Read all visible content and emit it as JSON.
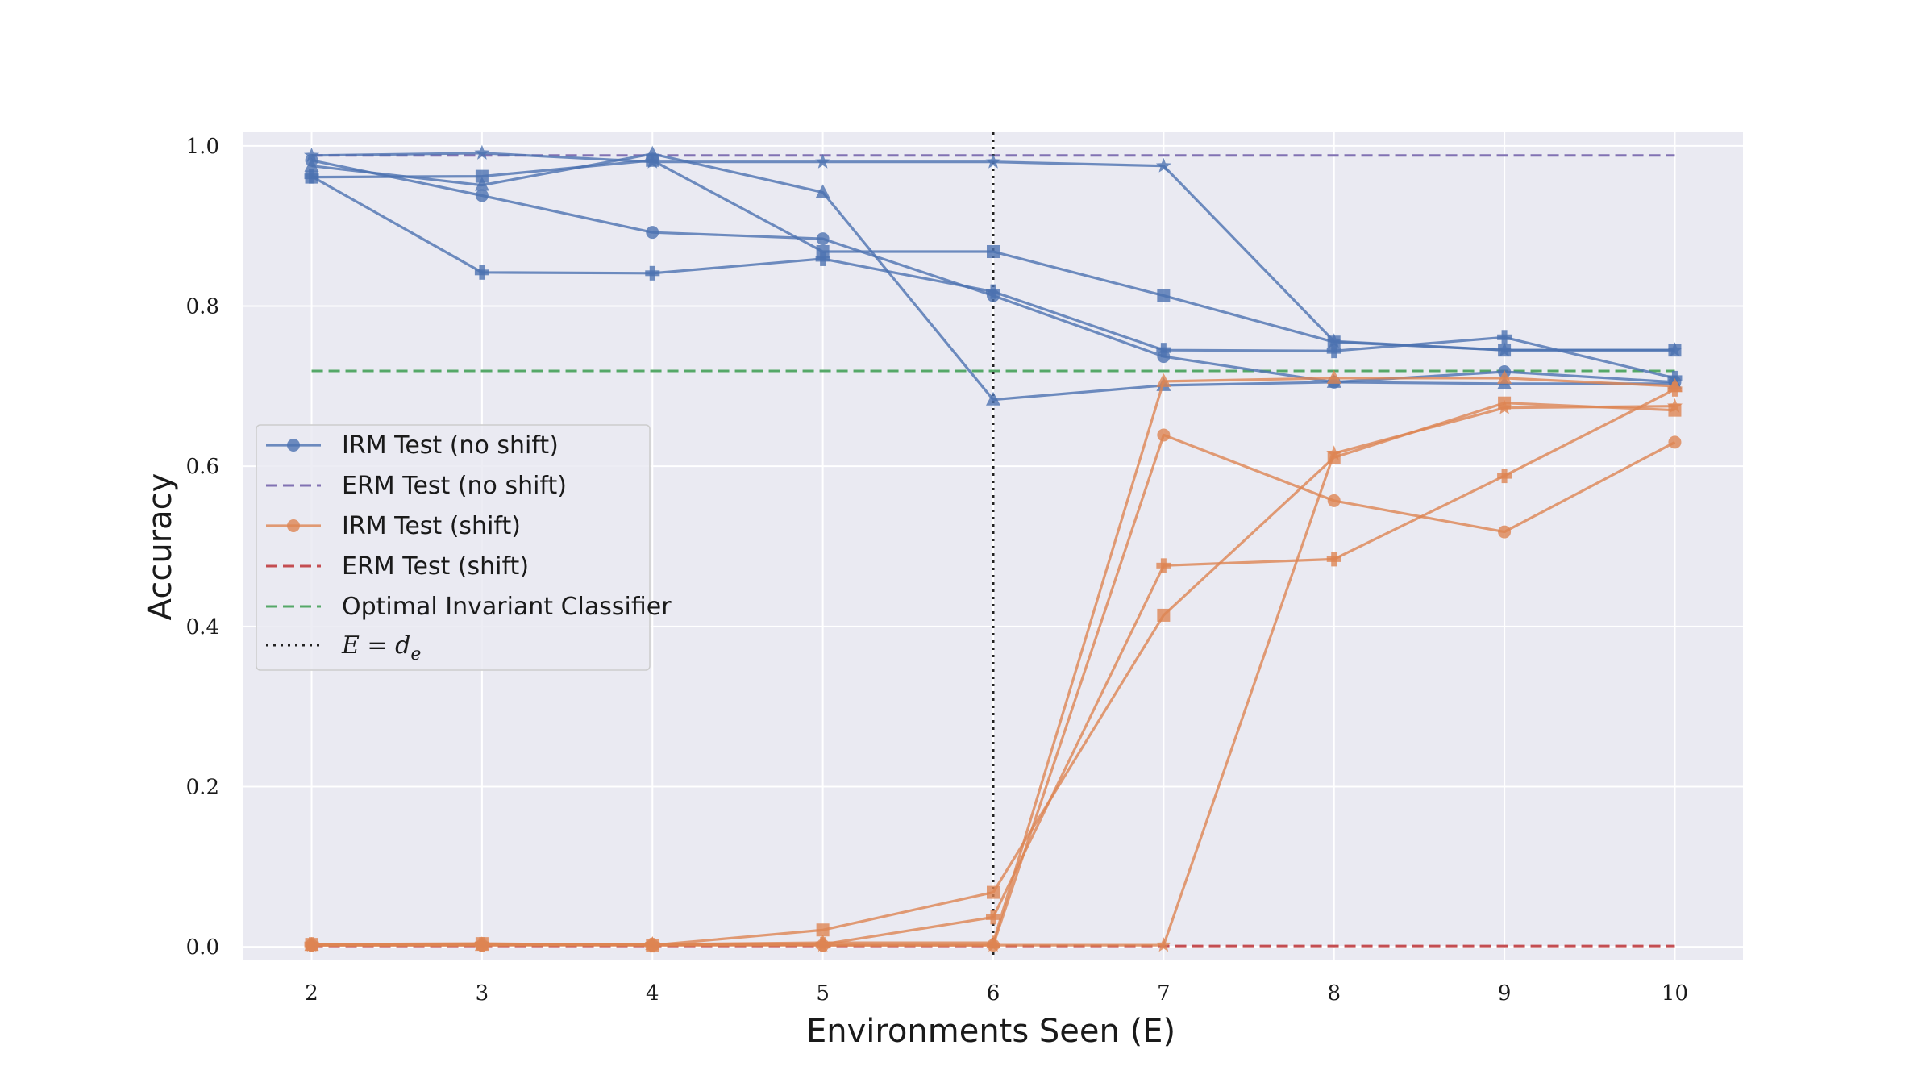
{
  "chart_data": {
    "type": "line",
    "title": "",
    "xlabel": "Environments Seen (E)",
    "ylabel": "Accuracy",
    "xlim": [
      1.6,
      10.4
    ],
    "ylim": [
      -0.017,
      1.017
    ],
    "xticks": [
      2,
      3,
      4,
      5,
      6,
      7,
      8,
      9,
      10
    ],
    "yticks": [
      "0.0",
      "0.2",
      "0.4",
      "0.6",
      "0.8",
      "1.0"
    ],
    "grid": true,
    "legend_position": "center-left",
    "colors": {
      "irm_no_shift": "#4c72b0",
      "erm_no_shift": "#8172b3",
      "irm_shift": "#dd8452",
      "erm_shift": "#c44e52",
      "optimal": "#55a868",
      "divider": "#222222",
      "plot_bg": "#eaeaf2"
    },
    "legend": [
      {
        "label": "IRM Test (no shift)",
        "style": "solid-marker",
        "color": "#4c72b0"
      },
      {
        "label": "ERM Test (no shift)",
        "style": "dashed",
        "color": "#8172b3"
      },
      {
        "label": "IRM Test (shift)",
        "style": "solid-marker",
        "color": "#dd8452"
      },
      {
        "label": "ERM Test (shift)",
        "style": "dashed",
        "color": "#c44e52"
      },
      {
        "label": "Optimal Invariant Classifier",
        "style": "dashed",
        "color": "#55a868"
      },
      {
        "label": "E = d",
        "subscript": "e",
        "style": "dotted",
        "color": "#222222"
      }
    ],
    "x": [
      2,
      3,
      4,
      5,
      6,
      7,
      8,
      9,
      10
    ],
    "series": [
      {
        "group": "irm_no_shift",
        "marker": "circle",
        "values": [
          0.982,
          0.938,
          0.892,
          0.884,
          0.813,
          0.737,
          0.705,
          0.718,
          0.705
        ]
      },
      {
        "group": "irm_no_shift",
        "marker": "square",
        "values": [
          0.961,
          0.962,
          0.982,
          0.868,
          0.868,
          0.813,
          0.755,
          0.745,
          0.745
        ]
      },
      {
        "group": "irm_no_shift",
        "marker": "triangle",
        "values": [
          0.975,
          0.951,
          0.99,
          0.942,
          0.683,
          0.701,
          0.705,
          0.703,
          0.703
        ]
      },
      {
        "group": "irm_no_shift",
        "marker": "plus",
        "values": [
          0.962,
          0.842,
          0.841,
          0.859,
          0.818,
          0.745,
          0.744,
          0.761,
          0.71
        ]
      },
      {
        "group": "irm_no_shift",
        "marker": "star",
        "values": [
          0.988,
          0.991,
          0.98,
          0.98,
          0.98,
          0.975,
          0.756,
          0.745,
          0.745
        ]
      },
      {
        "group": "irm_shift",
        "marker": "circle",
        "values": [
          0.002,
          0.002,
          0.002,
          0.002,
          0.002,
          0.639,
          0.557,
          0.518,
          0.63
        ]
      },
      {
        "group": "irm_shift",
        "marker": "square",
        "values": [
          0.003,
          0.004,
          0.002,
          0.021,
          0.068,
          0.414,
          0.611,
          0.679,
          0.67
        ]
      },
      {
        "group": "irm_shift",
        "marker": "triangle",
        "values": [
          0.002,
          0.002,
          0.003,
          0.005,
          0.005,
          0.706,
          0.71,
          0.71,
          0.7
        ]
      },
      {
        "group": "irm_shift",
        "marker": "plus",
        "values": [
          0.003,
          0.003,
          0.002,
          0.003,
          0.037,
          0.476,
          0.484,
          0.588,
          0.696
        ]
      },
      {
        "group": "irm_shift",
        "marker": "star",
        "values": [
          0.002,
          0.003,
          0.003,
          0.002,
          0.002,
          0.002,
          0.616,
          0.673,
          0.675
        ]
      }
    ],
    "reference_lines": [
      {
        "group": "erm_no_shift",
        "orientation": "horizontal",
        "value": 0.988,
        "x_range": [
          2,
          10
        ]
      },
      {
        "group": "erm_shift",
        "orientation": "horizontal",
        "value": 0.001,
        "x_range": [
          2,
          10
        ]
      },
      {
        "group": "optimal",
        "orientation": "horizontal",
        "value": 0.719,
        "x_range": [
          2,
          10
        ]
      },
      {
        "group": "divider",
        "orientation": "vertical",
        "value": 6
      }
    ]
  }
}
